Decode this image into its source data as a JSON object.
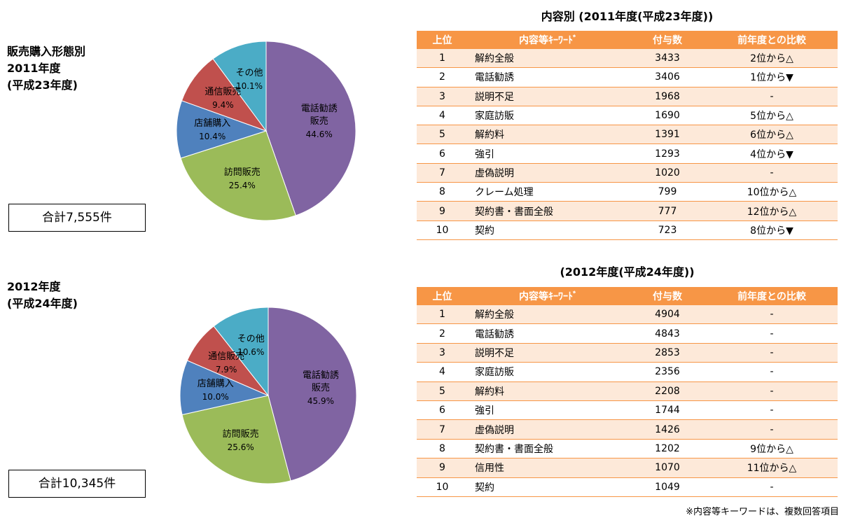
{
  "chart_data": [
    {
      "type": "pie",
      "title": [
        "販売購入形態別",
        "2011年度",
        "(平成23年度)"
      ],
      "categories": [
        "電話勧誘販売",
        "訪問販売",
        "店舗購入",
        "通信販売",
        "その他"
      ],
      "values": [
        44.6,
        25.4,
        10.4,
        9.4,
        10.1
      ],
      "value_labels": [
        "44.6%",
        "25.4%",
        "10.4%",
        "9.4%",
        "10.1%"
      ],
      "colors": [
        "#8064a2",
        "#9bbb59",
        "#4f81bd",
        "#c0504d",
        "#4bacc6"
      ],
      "total": "合計7,555件"
    },
    {
      "type": "pie",
      "title": [
        "2012年度",
        "(平成24年度)"
      ],
      "categories": [
        "電話勧誘販売",
        "訪問販売",
        "店舗購入",
        "通信販売",
        "その他"
      ],
      "values": [
        45.9,
        25.6,
        10.0,
        7.9,
        10.6
      ],
      "value_labels": [
        "45.9%",
        "25.6%",
        "10.0%",
        "7.9%",
        "10.6%"
      ],
      "colors": [
        "#8064a2",
        "#9bbb59",
        "#4f81bd",
        "#c0504d",
        "#4bacc6"
      ],
      "total": "合計10,345件"
    }
  ],
  "tables": [
    {
      "title": "内容別 (2011年度(平成23年度))",
      "header": [
        "上位",
        "内容等ｷｰﾜｰﾄﾞ",
        "付与数",
        "前年度との比較"
      ],
      "rows": [
        [
          1,
          "解約全般",
          3433,
          "2位から△"
        ],
        [
          2,
          "電話勧誘",
          3406,
          "1位から▼"
        ],
        [
          3,
          "説明不足",
          1968,
          "-"
        ],
        [
          4,
          "家庭訪販",
          1690,
          "5位から△"
        ],
        [
          5,
          "解約料",
          1391,
          "6位から△"
        ],
        [
          6,
          "強引",
          1293,
          "4位から▼"
        ],
        [
          7,
          "虚偽説明",
          1020,
          "-"
        ],
        [
          8,
          "クレーム処理",
          799,
          "10位から△"
        ],
        [
          9,
          "契約書・書面全般",
          777,
          "12位から△"
        ],
        [
          10,
          "契約",
          723,
          "8位から▼"
        ]
      ]
    },
    {
      "title": "(2012年度(平成24年度))",
      "header": [
        "上位",
        "内容等ｷｰﾜｰﾄﾞ",
        "付与数",
        "前年度との比較"
      ],
      "rows": [
        [
          1,
          "解約全般",
          4904,
          "-"
        ],
        [
          2,
          "電話勧誘",
          4843,
          "-"
        ],
        [
          3,
          "説明不足",
          2853,
          "-"
        ],
        [
          4,
          "家庭訪販",
          2356,
          "-"
        ],
        [
          5,
          "解約料",
          2208,
          "-"
        ],
        [
          6,
          "強引",
          1744,
          "-"
        ],
        [
          7,
          "虚偽説明",
          1426,
          "-"
        ],
        [
          8,
          "契約書・書面全般",
          1202,
          "9位から△"
        ],
        [
          9,
          "信用性",
          1070,
          "11位から△"
        ],
        [
          10,
          "契約",
          1049,
          "-"
        ]
      ]
    }
  ],
  "footnote": "※内容等キーワードは、複数回答項目"
}
